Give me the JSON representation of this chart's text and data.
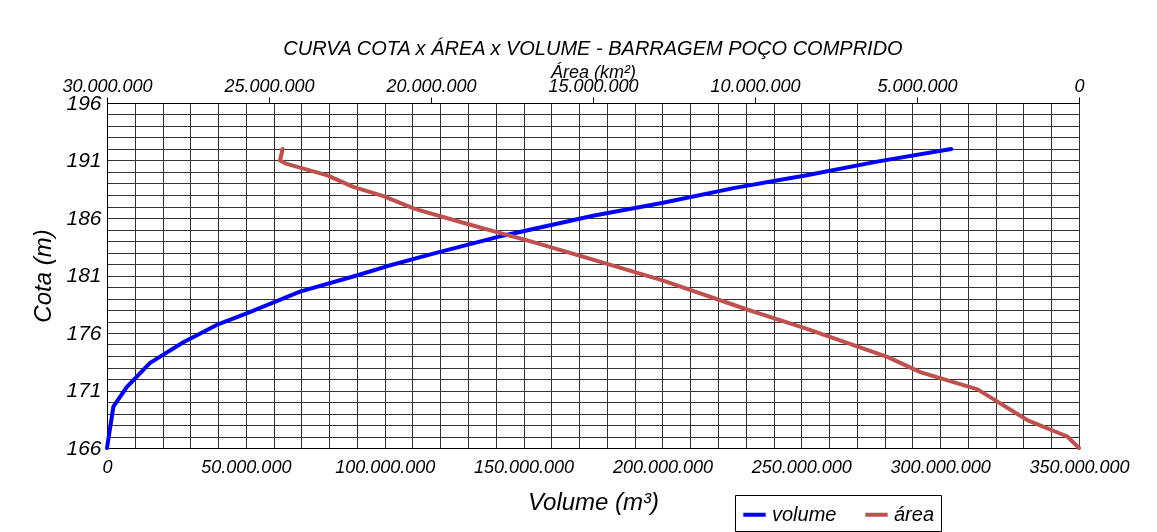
{
  "chart_data": {
    "type": "line",
    "title": "CURVA COTA x ÁREA x VOLUME - BARRAGEM POÇO COMPRIDO",
    "xlabel": "Volume (m³)",
    "x2label": "Área (km²)",
    "ylabel": "Cota (m)",
    "xlim": [
      0,
      350000000
    ],
    "xticks": [
      0,
      {
        "value": 50000000,
        "label": "50.000.000"
      },
      {
        "value": 100000000,
        "label": "100.000.000"
      },
      {
        "value": 150000000,
        "label": "150.000.000"
      },
      {
        "value": 200000000,
        "label": "200.000.000"
      },
      {
        "value": 250000000,
        "label": "250.000.000"
      },
      {
        "value": 300000000,
        "label": "300.000.000"
      },
      {
        "value": 350000000,
        "label": "350.000.000"
      }
    ],
    "x2lim": [
      30000000,
      0
    ],
    "x2ticks": [
      {
        "value": 30000000,
        "label": "30.000.000"
      },
      {
        "value": 25000000,
        "label": "25.000.000"
      },
      {
        "value": 20000000,
        "label": "20.000.000"
      },
      {
        "value": 15000000,
        "label": "15.000.000"
      },
      {
        "value": 10000000,
        "label": "10.000.000"
      },
      {
        "value": 5000000,
        "label": "5.000.000"
      },
      0
    ],
    "ylim": [
      166,
      196
    ],
    "yticks": [
      166,
      171,
      176,
      181,
      186,
      191,
      196
    ],
    "grid": true,
    "legend": "bottom right",
    "line_style": "solid",
    "marker": "none",
    "series": [
      {
        "name": "volume",
        "color": "#0000ff",
        "x": [
          0,
          2300000,
          7100000,
          15500000,
          27500000,
          39500000,
          50300000,
          69500000,
          89900000,
          100700000,
          117500000,
          141500000,
          175000000,
          199800000,
          225600000,
          251500000,
          277300000,
          304000000
        ],
        "values": [
          166,
          169.6,
          171.3,
          173.4,
          175.2,
          176.7,
          177.7,
          179.6,
          181.0,
          181.8,
          182.9,
          184.4,
          186.2,
          187.3,
          188.6,
          189.7,
          190.9,
          192
        ]
      },
      {
        "name": "área",
        "color": "#c0504d",
        "axis": "x2",
        "x": [
          24580000,
          24660000,
          24450000,
          23200000,
          22400000,
          21470000,
          20500000,
          18900000,
          16840000,
          14900000,
          12880000,
          10200000,
          8440000,
          5900000,
          4900000,
          3130000,
          1580000,
          360000,
          0
        ],
        "values": [
          192,
          191.0,
          190.7,
          189.7,
          188.7,
          187.9,
          186.8,
          185.5,
          183.9,
          182.3,
          180.6,
          178.0,
          176.4,
          173.9,
          172.6,
          171.1,
          168.4,
          167.0,
          166
        ]
      }
    ]
  }
}
